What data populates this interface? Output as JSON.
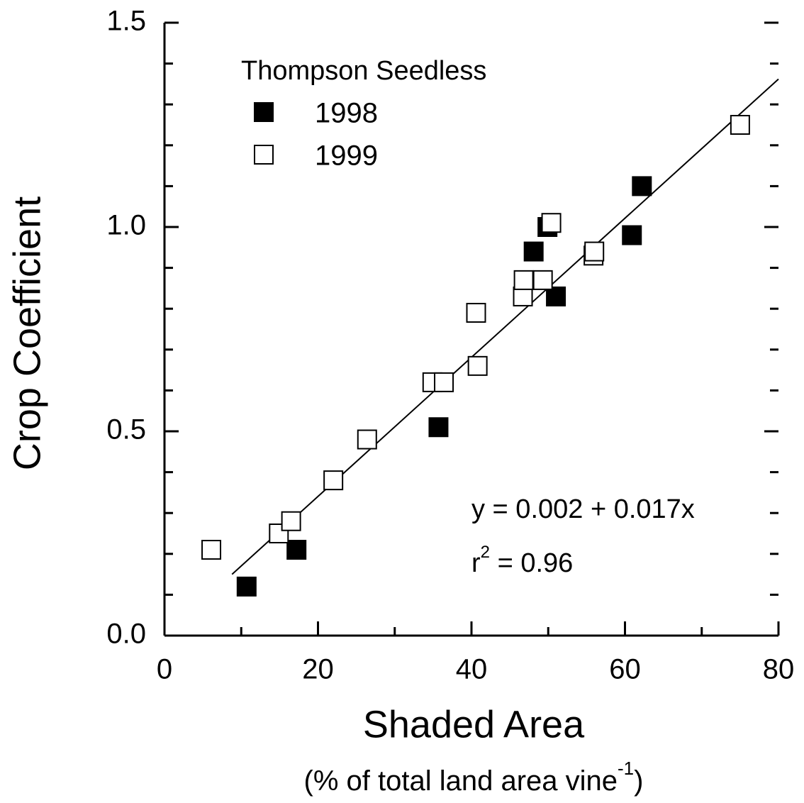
{
  "chart_data": {
    "type": "scatter",
    "legend_title": "Thompson Seedless",
    "xlabel": "Shaded Area",
    "xlabel_sub": {
      "base": "(% of total land area vine",
      "sup": "-1",
      "end": ")"
    },
    "ylabel": "Crop Coefficient",
    "equation": "y = 0.002 + 0.017x",
    "r2": {
      "base": "r",
      "sup": "2",
      "end": " = 0.96"
    },
    "xlim": [
      0,
      80
    ],
    "ylim": [
      0,
      1.5
    ],
    "xticks": [
      0,
      20,
      40,
      60,
      80
    ],
    "x_minor_ticks": [
      10,
      30,
      50,
      70
    ],
    "yticks": [
      {
        "value": 0,
        "label": "0.0"
      },
      0.5,
      {
        "value": 1,
        "label": "1.0"
      },
      1.5
    ],
    "y_minor_ticks": [
      0.1,
      0.2,
      0.3,
      0.4,
      0.6,
      0.7,
      0.8,
      0.9,
      1.1,
      1.2,
      1.3,
      1.4
    ],
    "legend": "upper left",
    "series": [
      {
        "name": "1998",
        "color": "#000000",
        "filled": true,
        "x": [
          10.7,
          17.2,
          35.7,
          48.1,
          49.9,
          51.0,
          60.9,
          62.2
        ],
        "values": [
          0.12,
          0.21,
          0.51,
          0.94,
          1.0,
          0.83,
          0.98,
          1.1
        ]
      },
      {
        "name": "1999",
        "color": "#000000",
        "filled": false,
        "x": [
          6.1,
          14.9,
          16.5,
          22.0,
          26.4,
          34.9,
          36.4,
          40.8,
          40.6,
          46.7,
          46.8,
          49.3,
          50.4,
          55.9,
          56.0,
          75.0
        ],
        "values": [
          0.21,
          0.25,
          0.28,
          0.38,
          0.48,
          0.62,
          0.62,
          0.66,
          0.79,
          0.83,
          0.87,
          0.87,
          1.01,
          0.93,
          0.94,
          1.25
        ]
      }
    ],
    "fit": {
      "x": [
        8.8,
        80
      ],
      "y": [
        0.15,
        1.362
      ]
    }
  }
}
